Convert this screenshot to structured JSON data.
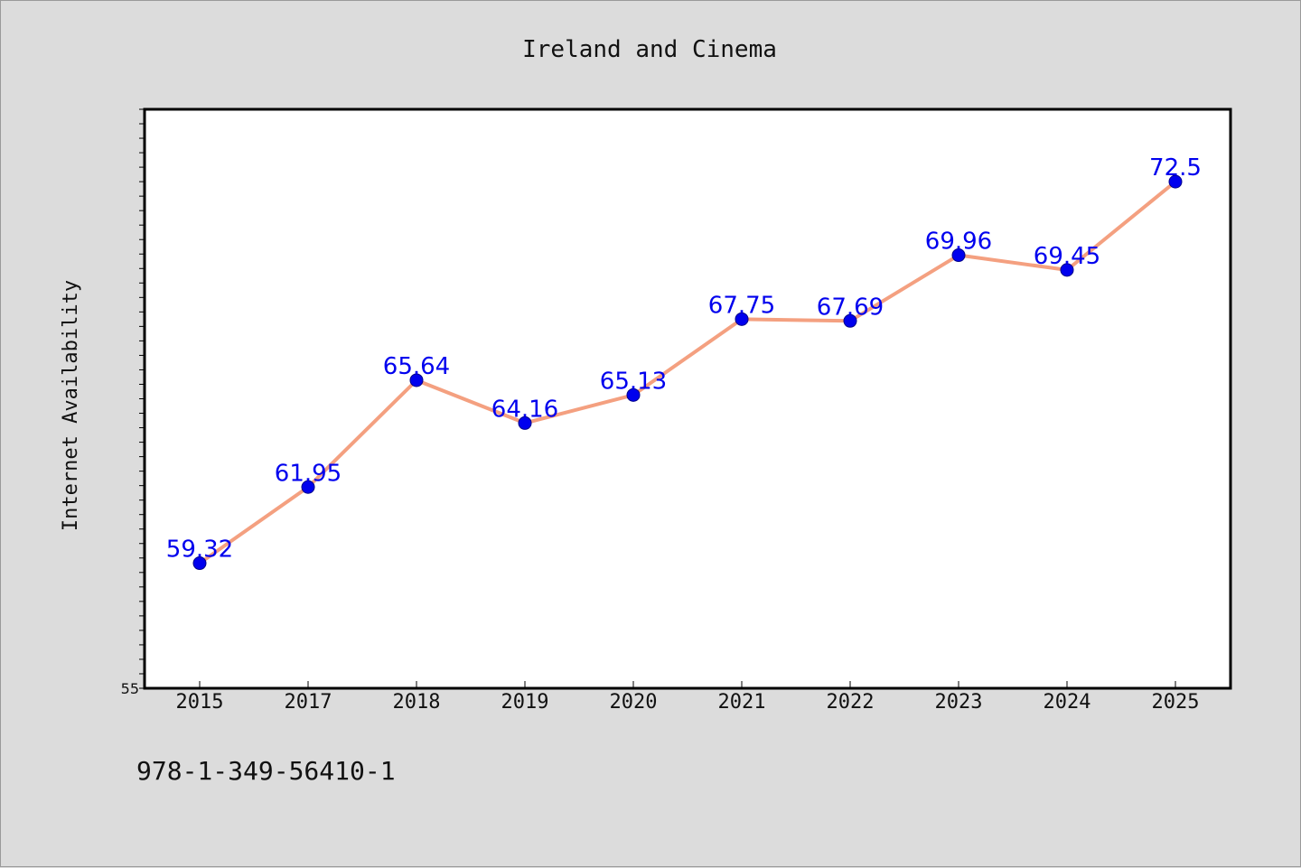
{
  "colors": {
    "background": "#dcdcdc",
    "plot_background": "#ffffff",
    "line": "#f4a080",
    "marker": "#0000ee",
    "data_label": "#0000ee",
    "axis": "#000000",
    "text": "#111111"
  },
  "footer_text": "978-1-349-56410-1",
  "chart_data": {
    "type": "line",
    "title": "Ireland and Cinema",
    "xlabel": "",
    "ylabel": "Internet Availability",
    "categories": [
      "2015",
      "2017",
      "2018",
      "2019",
      "2020",
      "2021",
      "2022",
      "2023",
      "2024",
      "2025"
    ],
    "series": [
      {
        "values": [
          59.32,
          61.95,
          65.64,
          64.16,
          65.13,
          67.75,
          67.69,
          69.96,
          69.45,
          72.5
        ],
        "labels": [
          "59.32",
          "61.95",
          "65.64",
          "64.16",
          "65.13",
          "67.75",
          "67.69",
          "69.96",
          "69.45",
          "72.5"
        ]
      }
    ],
    "ylim": [
      55,
      75
    ],
    "y_tick_labels": [
      "55"
    ],
    "grid": false,
    "legend": "none"
  }
}
